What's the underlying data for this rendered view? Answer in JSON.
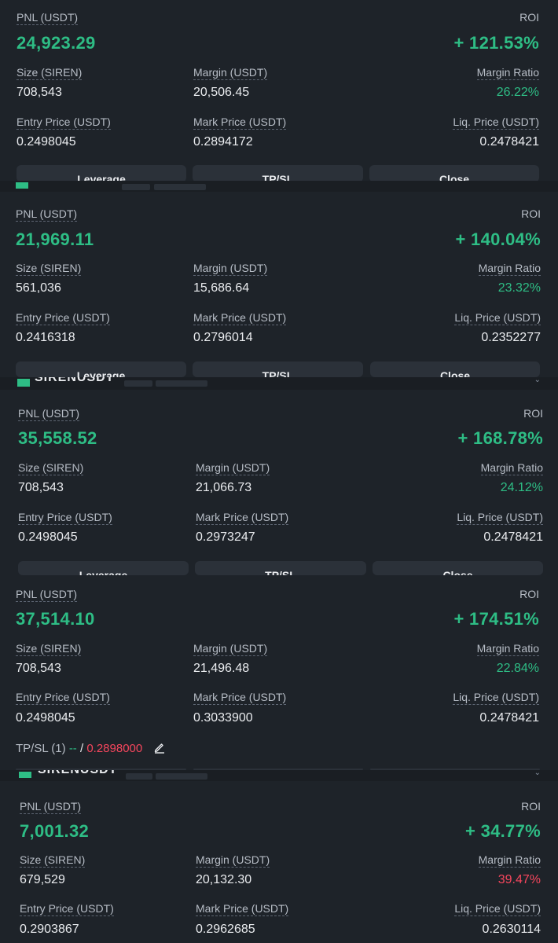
{
  "labels": {
    "pnl": "PNL (USDT)",
    "roi": "ROI",
    "size": "Size (SIREN)",
    "margin": "Margin (USDT)",
    "margin_ratio": "Margin Ratio",
    "entry": "Entry Price (USDT)",
    "mark": "Mark Price (USDT)",
    "liq": "Liq. Price (USDT)"
  },
  "buttons": {
    "leverage": "Leverage",
    "tpsl": "TP/SL",
    "close": "Close"
  },
  "symbol": "SIRENUSDT",
  "positions": [
    {
      "pnl": "24,923.29",
      "roi": "+ 121.53%",
      "size": "708,543",
      "margin": "20,506.45",
      "margin_ratio": "26.22%",
      "entry": "0.2498045",
      "mark": "0.2894172",
      "liq": "0.2478421"
    },
    {
      "pnl": "21,969.11",
      "roi": "+ 140.04%",
      "size": "561,036",
      "margin": "15,686.64",
      "margin_ratio": "23.32%",
      "entry": "0.2416318",
      "mark": "0.2796014",
      "liq": "0.2352277"
    },
    {
      "pnl": "35,558.52",
      "roi": "+ 168.78%",
      "size": "708,543",
      "margin": "21,066.73",
      "margin_ratio": "24.12%",
      "entry": "0.2498045",
      "mark": "0.2973247",
      "liq": "0.2478421"
    },
    {
      "pnl": "37,514.10",
      "roi": "+ 174.51%",
      "size": "708,543",
      "margin": "21,496.48",
      "margin_ratio": "22.84%",
      "entry": "0.2498045",
      "mark": "0.3033900",
      "liq": "0.2478421",
      "tpsl": {
        "label": "TP/SL (1)",
        "tp": "--",
        "sep": "/",
        "sl": "0.2898000"
      }
    },
    {
      "pnl": "7,001.32",
      "roi": "+ 34.77%",
      "size": "679,529",
      "margin": "20,132.30",
      "margin_ratio": "39.47%",
      "entry": "0.2903867",
      "mark": "0.2962685",
      "liq": "0.2630114"
    }
  ],
  "colors": {
    "bg": "#1e2329",
    "green": "#2ebd85",
    "red": "#f6465d",
    "button": "#2b3139"
  }
}
